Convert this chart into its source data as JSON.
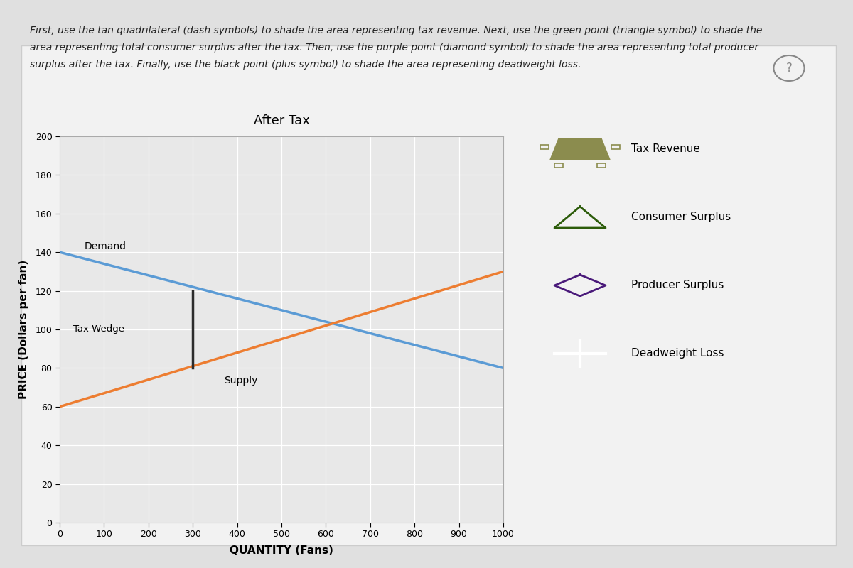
{
  "title": "After Tax",
  "xlabel": "QUANTITY (Fans)",
  "ylabel": "PRICE (Dollars per fan)",
  "xlim": [
    0,
    1000
  ],
  "ylim": [
    0,
    200
  ],
  "xticks": [
    0,
    100,
    200,
    300,
    400,
    500,
    600,
    700,
    800,
    900,
    1000
  ],
  "yticks": [
    0,
    20,
    40,
    60,
    80,
    100,
    120,
    140,
    160,
    180,
    200
  ],
  "demand_start_q": 0,
  "demand_start_p": 140,
  "demand_end_q": 1000,
  "demand_end_p": 80,
  "supply_start_q": 0,
  "supply_start_p": 60,
  "supply_end_q": 1000,
  "supply_end_p": 130,
  "tax_wedge_q": 300,
  "tax_consumer_price": 120,
  "tax_producer_price": 80,
  "demand_color": "#5b9bd5",
  "supply_color": "#ed7d31",
  "tax_wedge_color": "#2c2c2c",
  "tax_revenue_color": "#8b8c4e",
  "consumer_surplus_color": "#92d050",
  "producer_surplus_color": "#9370db",
  "deadweight_loss_color": "#696969",
  "demand_label": "Demand",
  "supply_label": "Supply",
  "tax_wedge_label": "Tax Wedge",
  "tax_revenue_label": "Tax Revenue",
  "consumer_surplus_label": "Consumer Surplus",
  "producer_surplus_label": "Producer Surplus",
  "deadweight_loss_label": "Deadweight Loss",
  "panel_bg": "#f0f0f0",
  "plot_bg": "#e8e8e8",
  "fig_bg": "#d8d8d8",
  "instruction_text_line1": "First, use the tan quadrilateral (dash symbols) to shade the area representing tax revenue. Next, use the green point (triangle symbol) to shade the",
  "instruction_text_line2": "area representing total consumer surplus after the tax. Then, use the purple point (diamond symbol) to shade the area representing total producer",
  "instruction_text_line3": "surplus after the tax. Finally, use the black point (plus symbol) to shade the area representing deadweight loss."
}
